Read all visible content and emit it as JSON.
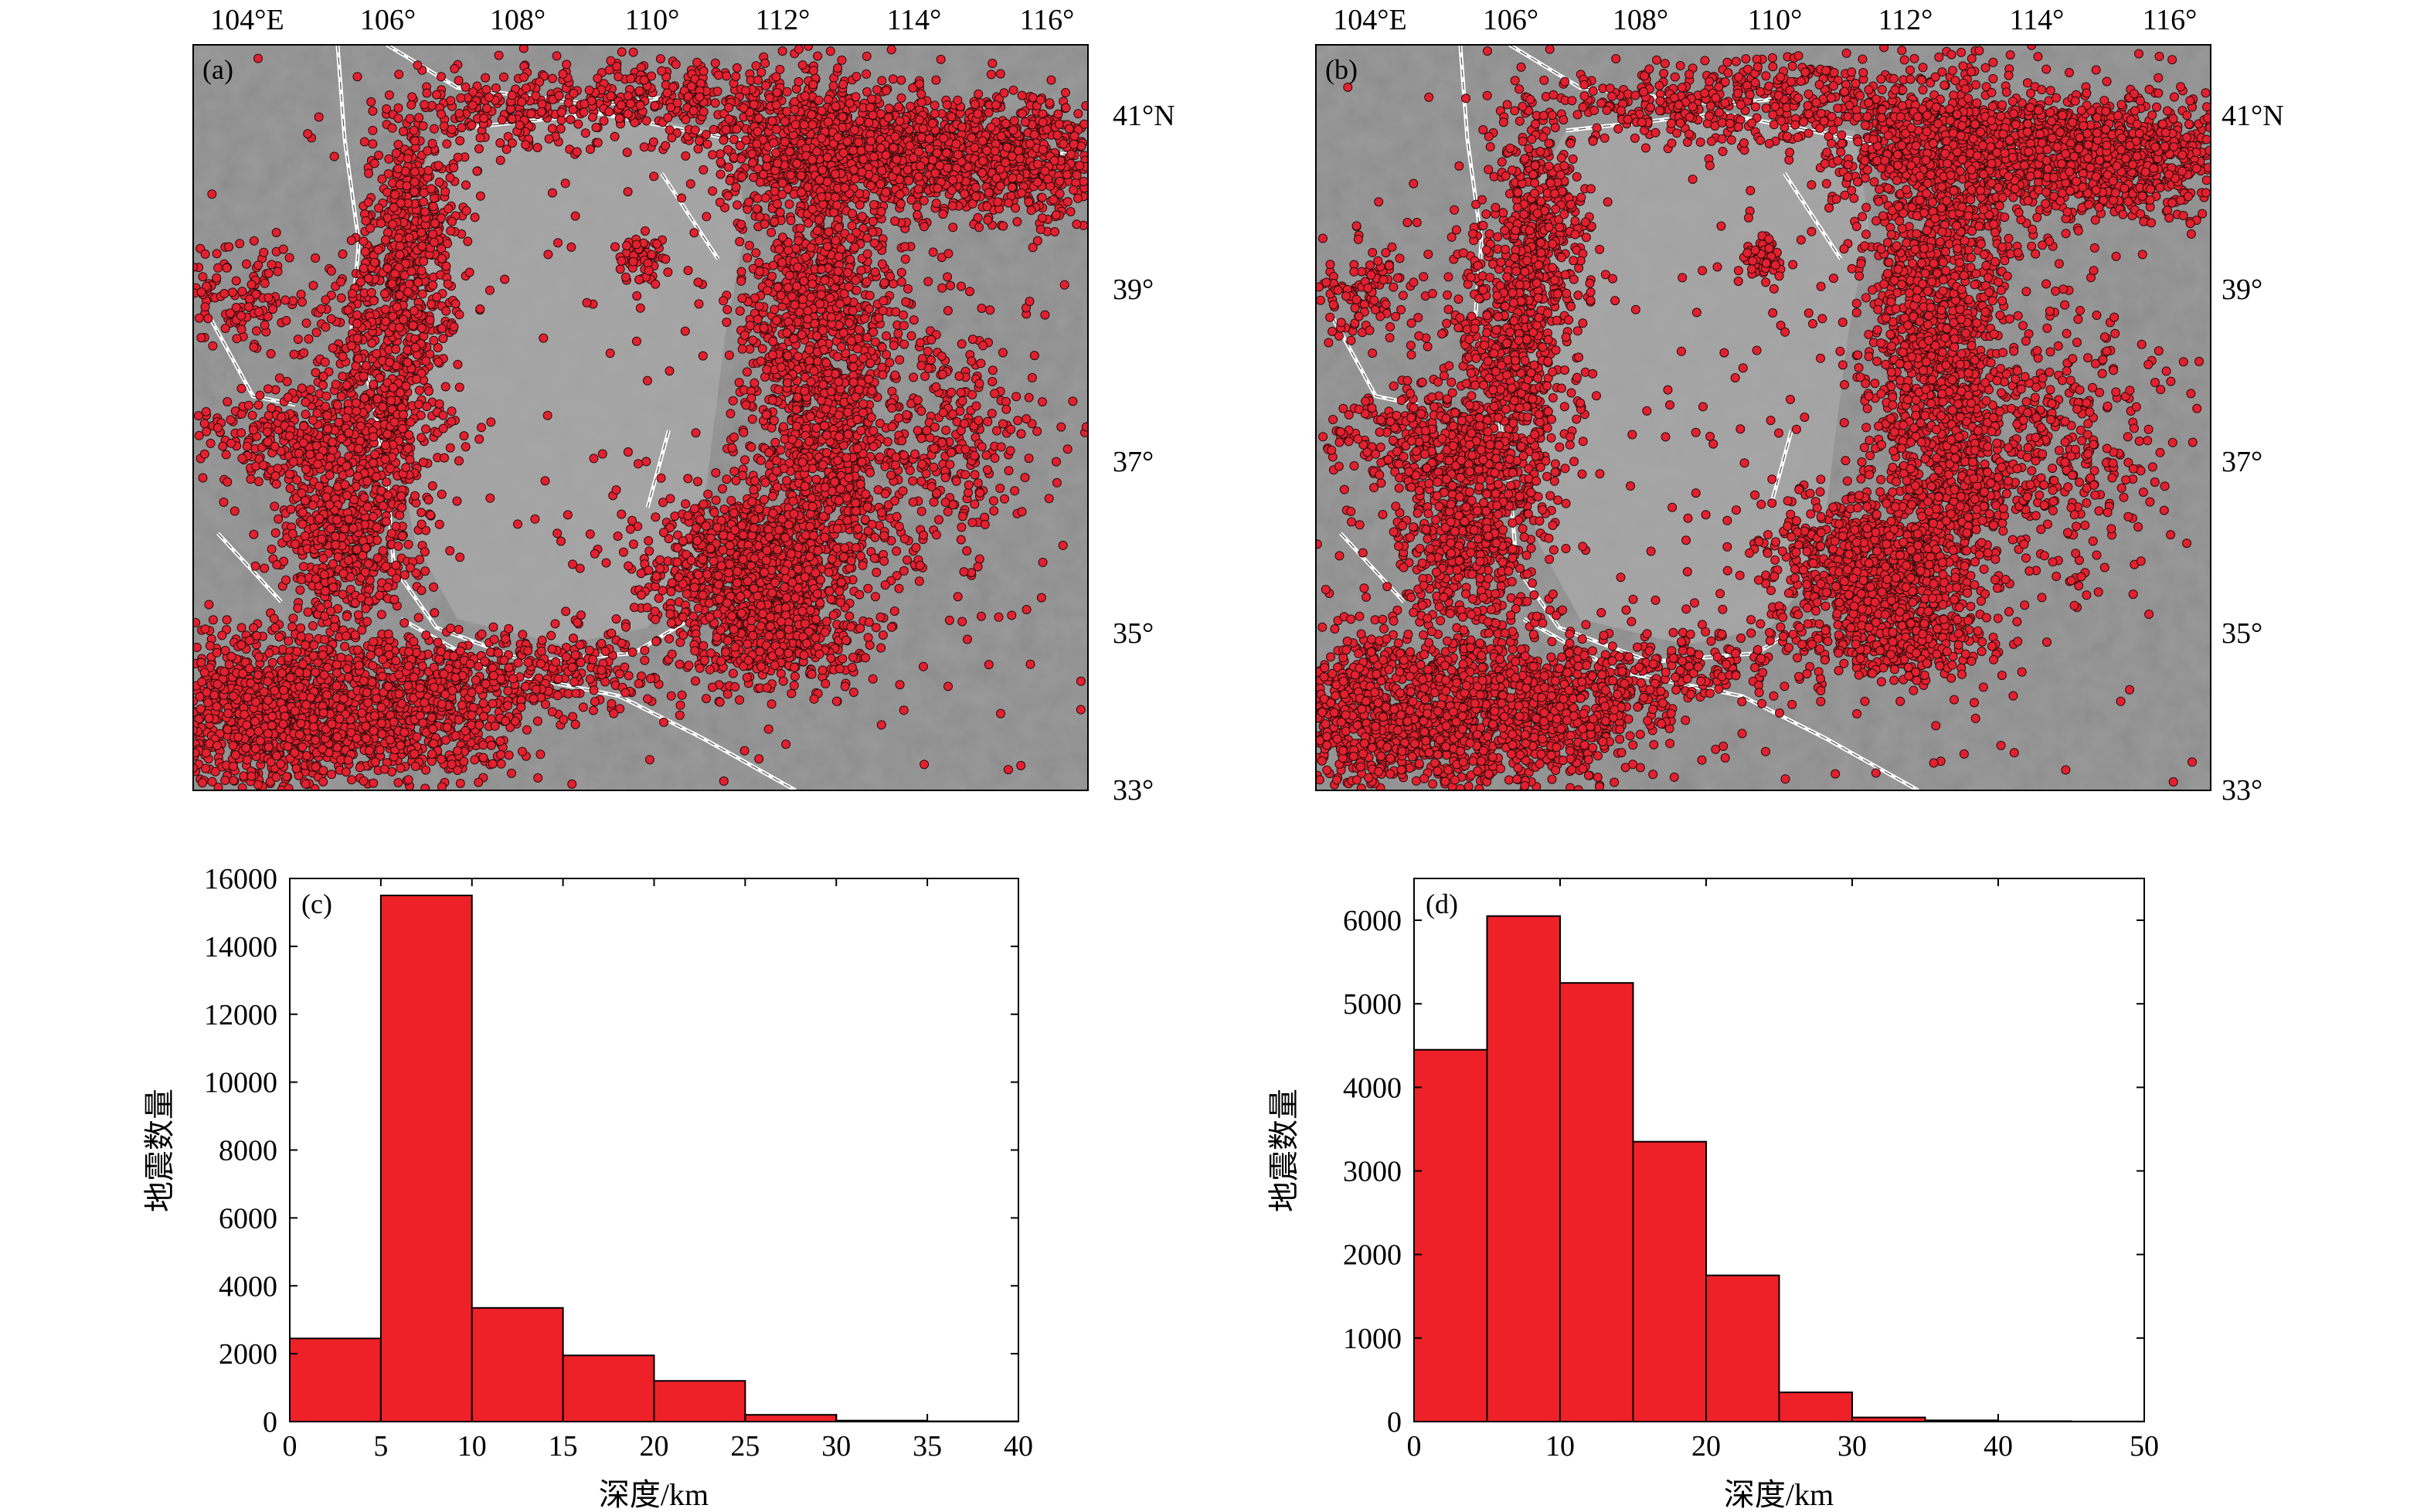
{
  "colors": {
    "marker": "#e3202f",
    "marker_edge": "#2a0a0a",
    "map_bg": "#8f8f8f",
    "ordos_block": "#a9a9a9",
    "fault": "#ffffff",
    "bar": "#ee2128",
    "frame": "#000000"
  },
  "chart_data": [
    {
      "panel": "(a)",
      "type": "scatter",
      "x_ticks": [
        "104°E",
        "106°",
        "108°",
        "110°",
        "112°",
        "114°",
        "116°"
      ],
      "y_ticks": [
        "41°N",
        "39°",
        "37°",
        "35°",
        "33°"
      ],
      "xlim": [
        103.75,
        116.45
      ],
      "ylim": [
        33.0,
        41.7
      ]
    },
    {
      "panel": "(b)",
      "type": "scatter",
      "x_ticks": [
        "104°E",
        "106°",
        "108°",
        "110°",
        "112°",
        "114°",
        "116°"
      ],
      "y_ticks": [
        "41°N",
        "39°",
        "37°",
        "35°",
        "33°"
      ],
      "xlim": [
        103.75,
        116.45
      ],
      "ylim": [
        33.0,
        41.7
      ]
    },
    {
      "panel": "(c)",
      "type": "bar",
      "xlabel": "深度/km",
      "ylabel": "地震数量",
      "xlim": [
        0,
        40
      ],
      "ylim": [
        0,
        16000
      ],
      "x_ticks": [
        0,
        5,
        10,
        15,
        20,
        25,
        30,
        35,
        40
      ],
      "y_ticks": [
        0,
        2000,
        4000,
        6000,
        8000,
        10000,
        12000,
        14000,
        16000
      ],
      "bins": [
        [
          0,
          5
        ],
        [
          5,
          10
        ],
        [
          10,
          15
        ],
        [
          15,
          20
        ],
        [
          20,
          25
        ],
        [
          25,
          30
        ],
        [
          30,
          35
        ],
        [
          35,
          40
        ]
      ],
      "values": [
        2450,
        15500,
        3350,
        1950,
        1200,
        200,
        30,
        10
      ]
    },
    {
      "panel": "(d)",
      "type": "bar",
      "xlabel": "深度/km",
      "ylabel": "地震数量",
      "xlim": [
        0,
        50
      ],
      "ylim": [
        0,
        6500
      ],
      "x_ticks": [
        0,
        10,
        20,
        30,
        40,
        50
      ],
      "y_ticks": [
        0,
        1000,
        2000,
        3000,
        4000,
        5000,
        6000
      ],
      "bins": [
        [
          0,
          5
        ],
        [
          5,
          10
        ],
        [
          10,
          15
        ],
        [
          15,
          20
        ],
        [
          20,
          25
        ],
        [
          25,
          30
        ],
        [
          30,
          35
        ],
        [
          35,
          40
        ],
        [
          40,
          45
        ],
        [
          45,
          50
        ]
      ],
      "values": [
        4450,
        6050,
        5250,
        3350,
        1750,
        350,
        50,
        15,
        5,
        2
      ]
    }
  ]
}
